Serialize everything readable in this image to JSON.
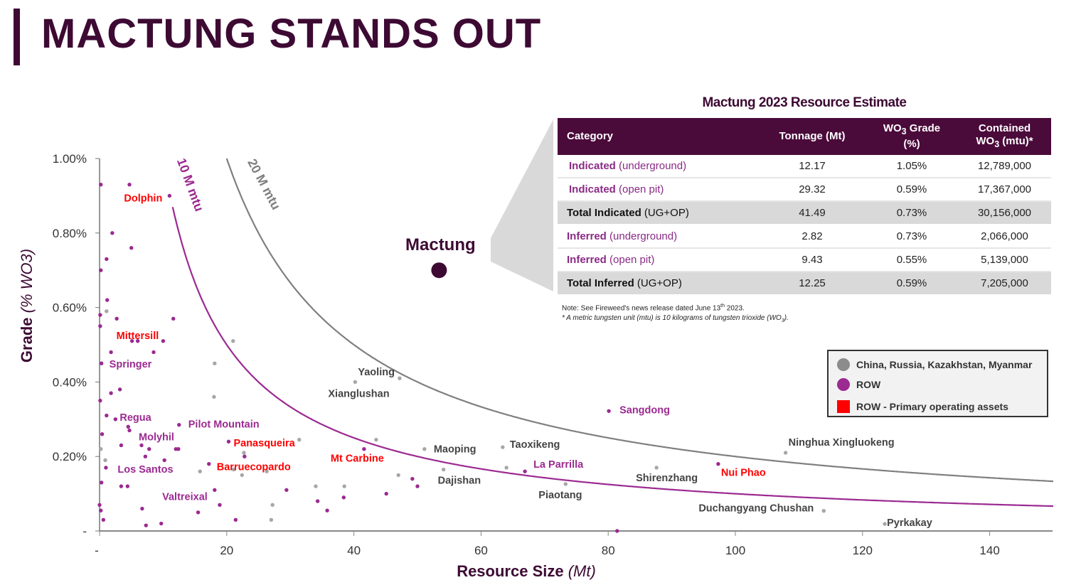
{
  "page_title": "MACTUNG STANDS OUT",
  "table": {
    "title": "Mactung 2023 Resource Estimate",
    "headers": {
      "category": "Category",
      "tonnage": "Tonnage (Mt)",
      "grade_pre": "WO",
      "grade_sub": "3",
      "grade_post": " Grade",
      "grade_unit": "(%)",
      "contained_line1": "Contained",
      "contained_pre": "WO",
      "contained_sub": "3",
      "contained_post": " (mtu)*"
    },
    "rows": [
      {
        "bold": "Indicated",
        "rest": " (underground)",
        "tonnage": "12.17",
        "grade": "1.05%",
        "contained": "12,789,000"
      },
      {
        "bold": "Indicated",
        "rest": " (open pit)",
        "tonnage": "29.32",
        "grade": "0.59%",
        "contained": "17,367,000"
      },
      {
        "bold": "Total Indicated",
        "rest": " (UG+OP)",
        "tonnage": "41.49",
        "grade": "0.73%",
        "contained": "30,156,000"
      },
      {
        "bold": "Inferred",
        "rest": " (underground)",
        "tonnage": "2.82",
        "grade": "0.73%",
        "contained": "2,066,000"
      },
      {
        "bold": "Inferred",
        "rest": " (open pit)",
        "tonnage": "9.43",
        "grade": "0.55%",
        "contained": "5,139,000"
      },
      {
        "bold": "Total Inferred",
        "rest": " (UG+OP)",
        "tonnage": "12.25",
        "grade": "0.59%",
        "contained": "7,205,000"
      }
    ],
    "note_line1_pre": "Note: See Fireweed's news release dated June 13",
    "note_line1_sup": "th",
    "note_line1_post": " 2023.",
    "note_line2_pre": "* A metric tungsten unit (mtu) is 10 kilograms of tungsten trioxide (WO",
    "note_line2_sub": "3",
    "note_line2_post": ")."
  },
  "legend": [
    {
      "label": "China, Russia, Kazakhstan, Myanmar",
      "color": "#8c8c8c",
      "shape": "circle"
    },
    {
      "label": "ROW",
      "color": "#9b2a91",
      "shape": "circle"
    },
    {
      "label": "ROW - Primary operating assets",
      "color": "#ff0000",
      "shape": "square"
    }
  ],
  "chart_data": {
    "type": "scatter",
    "xlabel_main": "Resource Size ",
    "xlabel_unit": "(Mt)",
    "ylabel_main": "Grade ",
    "ylabel_unit": "(% WO3)",
    "xlim": [
      0,
      150
    ],
    "ylim": [
      0,
      1.0
    ],
    "x_ticks": [
      {
        "value": 0,
        "label": "-"
      },
      {
        "value": 20,
        "label": "20"
      },
      {
        "value": 40,
        "label": "40"
      },
      {
        "value": 60,
        "label": "60"
      },
      {
        "value": 80,
        "label": "80"
      },
      {
        "value": 100,
        "label": "100"
      },
      {
        "value": 120,
        "label": "120"
      },
      {
        "value": 140,
        "label": "140"
      }
    ],
    "y_ticks": [
      {
        "value": 0,
        "label": "-"
      },
      {
        "value": 0.2,
        "label": "0.20%"
      },
      {
        "value": 0.4,
        "label": "0.40%"
      },
      {
        "value": 0.6,
        "label": "0.60%"
      },
      {
        "value": 0.8,
        "label": "0.80%"
      },
      {
        "value": 1.0,
        "label": "1.00%"
      }
    ],
    "grid": false,
    "colors": {
      "china": "#a6a6a6",
      "row": "#9b2a91",
      "primary": "#ff0000",
      "mactung": "#3d0a33",
      "label_china": "#444444"
    },
    "contours": [
      {
        "label": "10 M mtu",
        "contained_mtu_millions": 10,
        "color": "#9b2a91"
      },
      {
        "label": "20 M mtu",
        "contained_mtu_millions": 20,
        "color": "#7f7f7f"
      }
    ],
    "highlight": {
      "name": "Mactung",
      "x": 53.4,
      "y": 0.7
    },
    "labeled_points": [
      {
        "name": "Dolphin",
        "x": 11.0,
        "y": 0.9,
        "group": "primary"
      },
      {
        "name": "Mittersill",
        "x": 6.0,
        "y": 0.51,
        "group": "primary"
      },
      {
        "name": "Springer",
        "x": 0.3,
        "y": 0.45,
        "group": "row"
      },
      {
        "name": "Regua",
        "x": 2.5,
        "y": 0.3,
        "group": "row"
      },
      {
        "name": "Molyhil",
        "x": 4.7,
        "y": 0.27,
        "group": "row"
      },
      {
        "name": "Pilot Mountain",
        "x": 12.5,
        "y": 0.285,
        "group": "row"
      },
      {
        "name": "Panasqueira",
        "x": 20.3,
        "y": 0.24,
        "group": "primary"
      },
      {
        "name": "Barruecopardo",
        "x": 17.2,
        "y": 0.18,
        "group": "primary"
      },
      {
        "name": "Los Santos",
        "x": 7.2,
        "y": 0.2,
        "group": "row"
      },
      {
        "name": "Valtreixal",
        "x": 18.1,
        "y": 0.11,
        "group": "row"
      },
      {
        "name": "Mt Carbine",
        "x": 41.6,
        "y": 0.22,
        "group": "primary"
      },
      {
        "name": "Yaoling",
        "x": 47.2,
        "y": 0.41,
        "group": "china"
      },
      {
        "name": "Xianglushan",
        "x": 40.2,
        "y": 0.4,
        "group": "china"
      },
      {
        "name": "Maoping",
        "x": 51.1,
        "y": 0.22,
        "group": "china"
      },
      {
        "name": "Dajishan",
        "x": 54.1,
        "y": 0.165,
        "group": "china"
      },
      {
        "name": "Taoxikeng",
        "x": 63.4,
        "y": 0.225,
        "group": "china"
      },
      {
        "name": "La Parrilla",
        "x": 66.9,
        "y": 0.16,
        "group": "row"
      },
      {
        "name": "Piaotang",
        "x": 73.3,
        "y": 0.126,
        "group": "china"
      },
      {
        "name": "Sangdong",
        "x": 80.1,
        "y": 0.322,
        "group": "row"
      },
      {
        "name": "Shirenzhang",
        "x": 87.6,
        "y": 0.17,
        "group": "china"
      },
      {
        "name": "Nui Phao",
        "x": 97.3,
        "y": 0.18,
        "group": "primary"
      },
      {
        "name": "Ninghua Xingluokeng",
        "x": 107.9,
        "y": 0.21,
        "group": "china"
      },
      {
        "name": "Duchangyang Chushan",
        "x": 113.9,
        "y": 0.054,
        "group": "china"
      },
      {
        "name": "Pyrkakay",
        "x": 123.5,
        "y": 0.019,
        "group": "china"
      }
    ],
    "row_points": [
      [
        0.2,
        0.93
      ],
      [
        4.7,
        0.93
      ],
      [
        2.0,
        0.8
      ],
      [
        5.0,
        0.76
      ],
      [
        1.1,
        0.73
      ],
      [
        0.2,
        0.7
      ],
      [
        1.2,
        0.62
      ],
      [
        0.1,
        0.58
      ],
      [
        2.7,
        0.57
      ],
      [
        0.1,
        0.55
      ],
      [
        11.6,
        0.57
      ],
      [
        5.1,
        0.51
      ],
      [
        10.0,
        0.51
      ],
      [
        1.8,
        0.48
      ],
      [
        8.5,
        0.48
      ],
      [
        1.8,
        0.37
      ],
      [
        3.2,
        0.38
      ],
      [
        0.1,
        0.35
      ],
      [
        1.1,
        0.31
      ],
      [
        4.5,
        0.28
      ],
      [
        0.4,
        0.26
      ],
      [
        3.4,
        0.23
      ],
      [
        6.6,
        0.23
      ],
      [
        7.8,
        0.22
      ],
      [
        12.0,
        0.22
      ],
      [
        12.4,
        0.22
      ],
      [
        10.2,
        0.19
      ],
      [
        1.0,
        0.17
      ],
      [
        0.3,
        0.13
      ],
      [
        3.4,
        0.12
      ],
      [
        4.4,
        0.12
      ],
      [
        0.0,
        0.07
      ],
      [
        0.2,
        0.055
      ],
      [
        6.7,
        0.06
      ],
      [
        0.6,
        0.03
      ],
      [
        7.3,
        0.015
      ],
      [
        9.7,
        0.02
      ],
      [
        15.5,
        0.05
      ],
      [
        18.9,
        0.07
      ],
      [
        21.4,
        0.03
      ],
      [
        22.8,
        0.2
      ],
      [
        29.4,
        0.11
      ],
      [
        34.3,
        0.08
      ],
      [
        35.8,
        0.055
      ],
      [
        38.4,
        0.09
      ],
      [
        45.1,
        0.1
      ],
      [
        49.2,
        0.14
      ],
      [
        50.0,
        0.12
      ],
      [
        81.4,
        0.0
      ]
    ],
    "china_points": [
      [
        1.1,
        0.59
      ],
      [
        21.0,
        0.51
      ],
      [
        18.1,
        0.45
      ],
      [
        18.0,
        0.36
      ],
      [
        0.2,
        0.22
      ],
      [
        0.9,
        0.19
      ],
      [
        15.8,
        0.16
      ],
      [
        21.1,
        0.165
      ],
      [
        22.4,
        0.15
      ],
      [
        26.3,
        0.16
      ],
      [
        22.7,
        0.21
      ],
      [
        31.4,
        0.245
      ],
      [
        34.0,
        0.12
      ],
      [
        27.2,
        0.07
      ],
      [
        27.0,
        0.03
      ],
      [
        43.5,
        0.245
      ],
      [
        47.0,
        0.15
      ],
      [
        38.5,
        0.12
      ],
      [
        64.0,
        0.17
      ]
    ]
  }
}
